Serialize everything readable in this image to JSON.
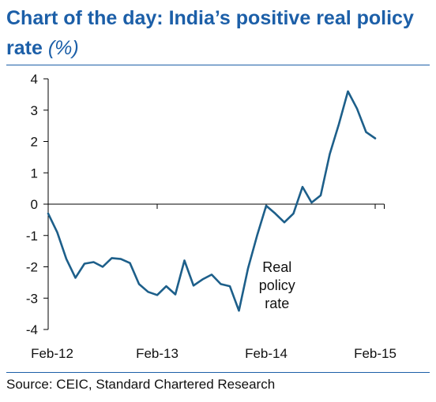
{
  "title": "Chart of the day:  India’s positive real policy rate",
  "title_unit": "(%)",
  "source": "Source: CEIC, Standard Chartered Research",
  "colors": {
    "title": "#1c5fa8",
    "line": "#1d5f8a",
    "axis": "#000000",
    "rule": "#1c5fa8"
  },
  "chart_data": {
    "type": "line",
    "title": "Chart of the day:  India’s positive real policy rate (%)",
    "xlabel": "",
    "ylabel": "",
    "ylim": [
      -4,
      4
    ],
    "yticks": [
      4,
      3,
      2,
      1,
      0,
      -1,
      -2,
      -3,
      -4
    ],
    "x_tick_labels": [
      "Feb-12",
      "Feb-13",
      "Feb-14",
      "Feb-15"
    ],
    "x_tick_months": [
      0,
      12,
      24,
      36
    ],
    "grid": false,
    "annotation": "Real policy rate",
    "series": [
      {
        "name": "Real policy rate",
        "x": [
          "Feb-12",
          "Mar-12",
          "Apr-12",
          "May-12",
          "Jun-12",
          "Jul-12",
          "Aug-12",
          "Sep-12",
          "Oct-12",
          "Nov-12",
          "Dec-12",
          "Jan-13",
          "Feb-13",
          "Mar-13",
          "Apr-13",
          "May-13",
          "Jun-13",
          "Jul-13",
          "Aug-13",
          "Sep-13",
          "Oct-13",
          "Nov-13",
          "Dec-13",
          "Jan-14",
          "Feb-14",
          "Mar-14",
          "Apr-14",
          "May-14",
          "Jun-14",
          "Jul-14",
          "Aug-14",
          "Sep-14",
          "Oct-14",
          "Nov-14",
          "Dec-14",
          "Jan-15",
          "Feb-15",
          "Mar-15"
        ],
        "values": [
          -0.3,
          -0.9,
          -1.75,
          -2.35,
          -1.9,
          -1.85,
          -2.0,
          -1.72,
          -1.75,
          -1.88,
          -2.55,
          -2.8,
          -2.9,
          -2.62,
          -2.88,
          -1.8,
          -2.6,
          -2.4,
          -2.25,
          -2.55,
          -2.62,
          -3.4,
          -2.05,
          -1.0,
          -0.05,
          -0.3,
          -0.58,
          -0.3,
          0.55,
          0.05,
          0.28,
          1.6,
          2.55,
          3.6,
          3.05,
          2.3,
          2.1,
          null
        ]
      }
    ]
  }
}
